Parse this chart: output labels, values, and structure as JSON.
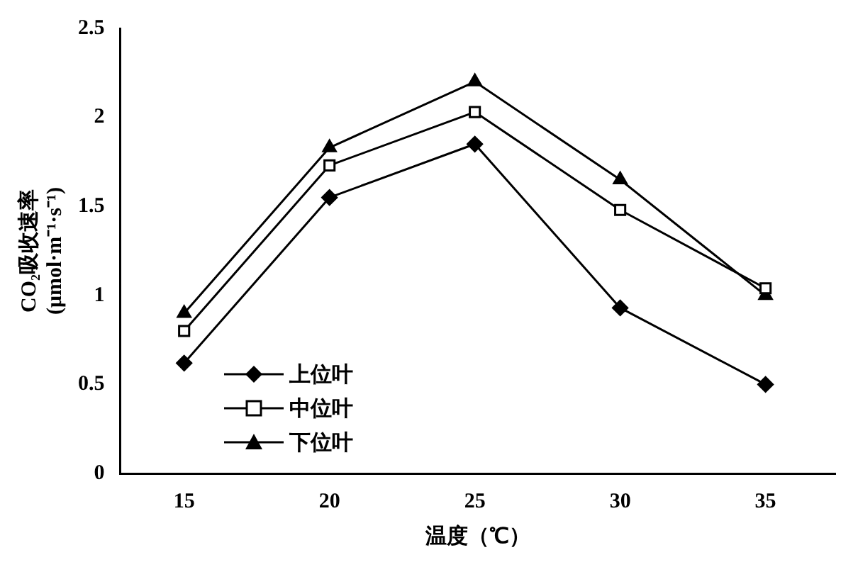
{
  "chart_data": {
    "type": "line",
    "xlabel": "温度（℃）",
    "ylabel": "CO₂吸收速率\n(μmol·m⁻¹·s⁻¹)",
    "x": [
      15,
      20,
      25,
      30,
      35
    ],
    "xlim": [
      12.8,
      37.4
    ],
    "xticks": [
      15,
      20,
      25,
      30,
      35
    ],
    "ylim": [
      0,
      2.5
    ],
    "yticks": [
      0,
      0.5,
      1,
      1.5,
      2,
      2.5
    ],
    "grid": false,
    "legend": "bottom left",
    "line_style": "solid",
    "series": [
      {
        "name": "上位叶",
        "color": "#000000",
        "marker": "diamond",
        "values": [
          0.62,
          1.55,
          1.85,
          0.93,
          0.5
        ]
      },
      {
        "name": "中位叶",
        "color": "#000000",
        "marker": "square",
        "values": [
          0.8,
          1.73,
          2.03,
          1.48,
          1.04
        ]
      },
      {
        "name": "下位叶",
        "color": "#000000",
        "marker": "triangle",
        "values": [
          0.9,
          1.83,
          2.2,
          1.65,
          1.0
        ]
      }
    ]
  }
}
